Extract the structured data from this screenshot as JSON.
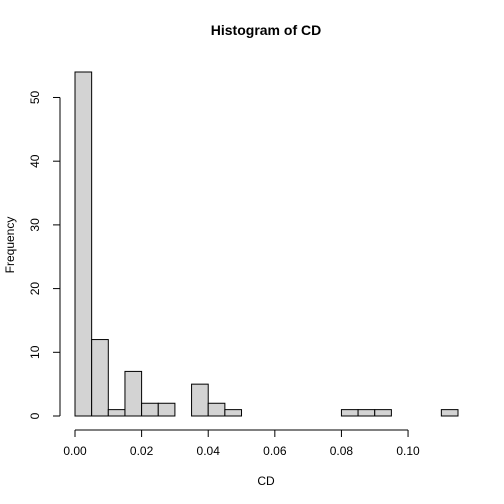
{
  "chart_data": {
    "type": "bar",
    "title": "Histogram of CD",
    "xlabel": "CD",
    "ylabel": "Frequency",
    "bin_width": 0.005,
    "bins_start": 0.0,
    "values": [
      54,
      12,
      1,
      7,
      2,
      2,
      0,
      5,
      2,
      1,
      0,
      0,
      0,
      0,
      0,
      0,
      1,
      1,
      1,
      0,
      0,
      0,
      1
    ],
    "xlim": [
      0.0,
      0.115
    ],
    "ylim": [
      0,
      54
    ],
    "x_ticks": [
      0.0,
      0.02,
      0.04,
      0.06,
      0.08,
      0.1
    ],
    "x_tick_labels": [
      "0.00",
      "0.02",
      "0.04",
      "0.06",
      "0.08",
      "0.10"
    ],
    "y_ticks": [
      0,
      10,
      20,
      30,
      40,
      50
    ],
    "y_tick_labels": [
      "0",
      "10",
      "20",
      "30",
      "40",
      "50"
    ],
    "grid": false,
    "legend": "none",
    "colors": {
      "bar_fill": "#d3d3d3",
      "bar_stroke": "#000000"
    }
  }
}
